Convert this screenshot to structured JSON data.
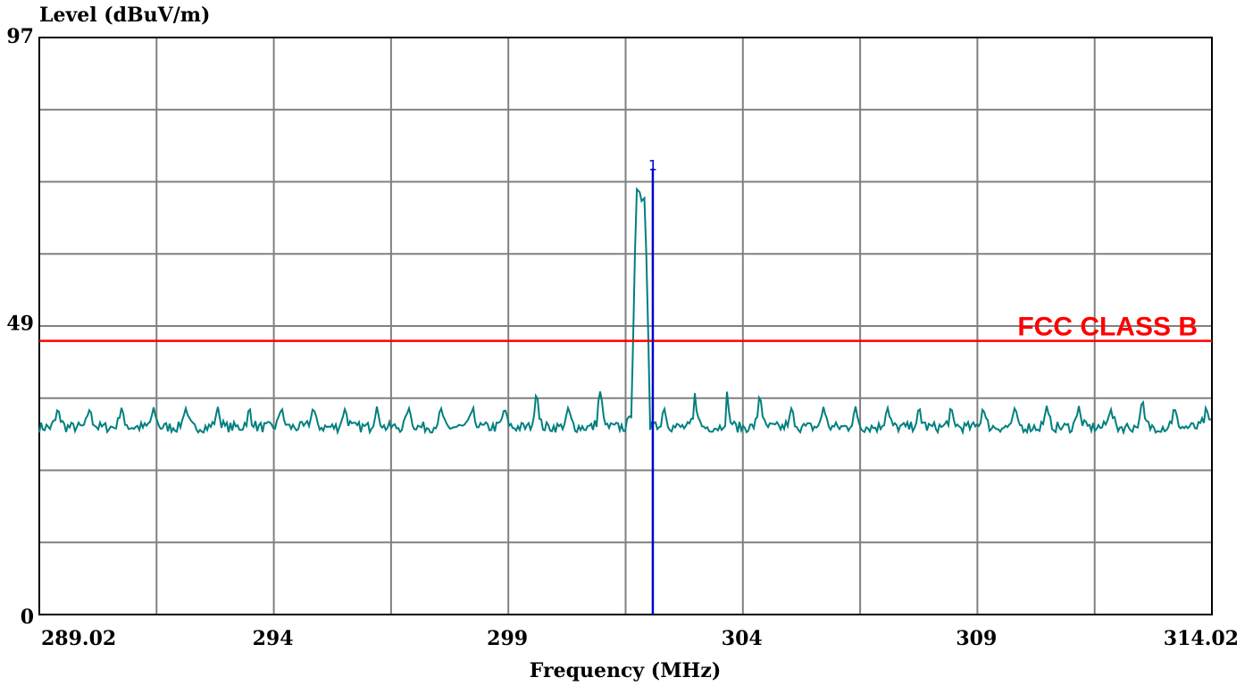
{
  "chart_data": {
    "type": "line",
    "ylabel": "Level (dBuV/m)",
    "xlabel": "Frequency (MHz)",
    "xlim": [
      289.02,
      314.02
    ],
    "ylim": [
      0,
      97
    ],
    "y_ticks": [
      {
        "value": 97,
        "label": "97"
      },
      {
        "value": 49,
        "label": "49"
      },
      {
        "value": 0,
        "label": "0"
      }
    ],
    "x_ticks": [
      {
        "value": 289.02,
        "label": "289.02"
      },
      {
        "value": 294,
        "label": "294"
      },
      {
        "value": 299,
        "label": "299"
      },
      {
        "value": 304,
        "label": "304"
      },
      {
        "value": 309,
        "label": "309"
      },
      {
        "value": 314.02,
        "label": "314.02"
      }
    ],
    "grid": true,
    "grid_x_divisions": 10,
    "grid_y_divisions": 8,
    "limit_line": {
      "name": "FCC CLASS B",
      "value": 46,
      "color": "#ff0000"
    },
    "marker": {
      "label": "1",
      "frequency": 302.1,
      "level": 75,
      "color": "#0000cc"
    },
    "series": [
      {
        "color": "#007f7f",
        "noise_floor": 31.5,
        "baseline_peak": 35,
        "peak_spacing": 0.68,
        "peak_start": 289.42,
        "signal": [
          [
            301.64,
            33
          ],
          [
            301.68,
            46
          ],
          [
            301.72,
            61
          ],
          [
            301.76,
            71.5
          ],
          [
            301.82,
            71
          ],
          [
            301.86,
            69.5
          ],
          [
            301.92,
            70
          ],
          [
            301.96,
            61
          ],
          [
            302.0,
            48
          ],
          [
            302.04,
            33
          ]
        ],
        "highlight_peaks": [
          [
            299.7,
            37.5
          ],
          [
            301.1,
            37.5
          ],
          [
            302.7,
            38
          ],
          [
            303.4,
            38
          ],
          [
            304.2,
            37
          ],
          [
            312.8,
            36
          ]
        ]
      }
    ]
  }
}
